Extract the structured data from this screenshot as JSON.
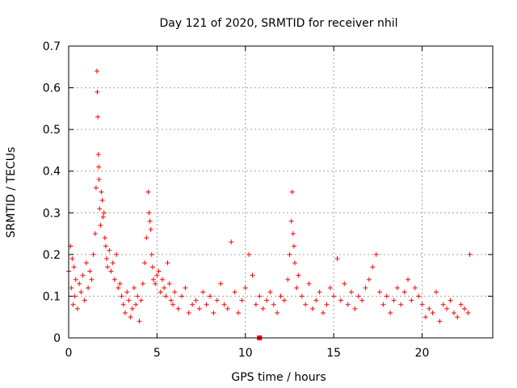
{
  "chart_data": {
    "type": "scatter",
    "title": "Day 121 of 2020, SRMTID for receiver nhil",
    "xlabel": "GPS time / hours",
    "ylabel": "SRMTID / TECUs",
    "xlim": [
      0,
      24
    ],
    "ylim": [
      0,
      0.7
    ],
    "grid": true,
    "marker": "+",
    "color": "#ff0000",
    "xticks": [
      0,
      5,
      10,
      15,
      20
    ],
    "yticks": [
      0,
      0.1,
      0.2,
      0.3,
      0.4,
      0.5,
      0.6,
      0.7
    ],
    "xtick_labels": [
      "0",
      "5",
      "10",
      "15",
      "20"
    ],
    "ytick_labels": [
      "0",
      "0.1",
      "0.2",
      "0.3",
      "0.4",
      "0.5",
      "0.6",
      "0.7"
    ],
    "series": [
      {
        "name": "SRMTID",
        "x": [
          0.0,
          0.1,
          0.15,
          0.2,
          0.25,
          0.3,
          0.35,
          0.4,
          0.5,
          0.6,
          0.7,
          0.8,
          0.9,
          1.0,
          1.1,
          1.2,
          1.3,
          1.4,
          1.5,
          1.55,
          1.6,
          1.62,
          1.65,
          1.68,
          1.7,
          1.72,
          1.75,
          1.8,
          1.85,
          1.9,
          1.95,
          2.0,
          2.05,
          2.1,
          2.15,
          2.2,
          2.3,
          2.4,
          2.5,
          2.6,
          2.7,
          2.8,
          2.9,
          3.0,
          3.1,
          3.2,
          3.3,
          3.4,
          3.5,
          3.6,
          3.7,
          3.8,
          3.9,
          4.0,
          4.1,
          4.2,
          4.3,
          4.4,
          4.5,
          4.55,
          4.6,
          4.65,
          4.7,
          4.75,
          4.8,
          4.9,
          5.0,
          5.1,
          5.2,
          5.3,
          5.4,
          5.5,
          5.6,
          5.7,
          5.8,
          5.9,
          6.0,
          6.2,
          6.4,
          6.6,
          6.8,
          7.0,
          7.2,
          7.4,
          7.6,
          7.8,
          8.0,
          8.2,
          8.4,
          8.6,
          8.8,
          9.0,
          9.2,
          9.4,
          9.6,
          9.8,
          10.0,
          10.2,
          10.4,
          10.6,
          10.8,
          11.0,
          11.2,
          11.4,
          11.6,
          11.8,
          12.0,
          12.2,
          12.4,
          12.5,
          12.6,
          12.65,
          12.7,
          12.75,
          12.8,
          12.9,
          13.0,
          13.2,
          13.4,
          13.6,
          13.8,
          14.0,
          14.2,
          14.4,
          14.6,
          14.8,
          15.0,
          15.2,
          15.4,
          15.6,
          15.8,
          16.0,
          16.2,
          16.4,
          16.6,
          16.8,
          17.0,
          17.2,
          17.4,
          17.6,
          17.8,
          18.0,
          18.2,
          18.4,
          18.6,
          18.8,
          19.0,
          19.2,
          19.4,
          19.6,
          19.8,
          20.0,
          20.2,
          20.4,
          20.6,
          20.8,
          21.0,
          21.2,
          21.4,
          21.6,
          21.8,
          22.0,
          22.2,
          22.4,
          22.6,
          22.7
        ],
        "y": [
          0.16,
          0.22,
          0.12,
          0.19,
          0.08,
          0.17,
          0.1,
          0.14,
          0.07,
          0.13,
          0.11,
          0.15,
          0.09,
          0.18,
          0.12,
          0.16,
          0.14,
          0.2,
          0.25,
          0.36,
          0.64,
          0.59,
          0.53,
          0.44,
          0.41,
          0.38,
          0.31,
          0.27,
          0.35,
          0.33,
          0.29,
          0.3,
          0.24,
          0.22,
          0.19,
          0.17,
          0.21,
          0.16,
          0.18,
          0.14,
          0.2,
          0.12,
          0.13,
          0.1,
          0.08,
          0.06,
          0.11,
          0.09,
          0.05,
          0.07,
          0.12,
          0.08,
          0.1,
          0.04,
          0.09,
          0.13,
          0.18,
          0.24,
          0.35,
          0.3,
          0.28,
          0.26,
          0.2,
          0.17,
          0.14,
          0.13,
          0.15,
          0.16,
          0.11,
          0.14,
          0.12,
          0.1,
          0.18,
          0.13,
          0.09,
          0.08,
          0.11,
          0.07,
          0.1,
          0.12,
          0.06,
          0.08,
          0.09,
          0.07,
          0.11,
          0.08,
          0.1,
          0.06,
          0.09,
          0.13,
          0.08,
          0.07,
          0.23,
          0.11,
          0.06,
          0.09,
          0.12,
          0.2,
          0.15,
          0.08,
          0.1,
          0.07,
          0.09,
          0.11,
          0.08,
          0.06,
          0.1,
          0.09,
          0.14,
          0.2,
          0.28,
          0.35,
          0.25,
          0.22,
          0.18,
          0.12,
          0.15,
          0.1,
          0.08,
          0.13,
          0.07,
          0.09,
          0.11,
          0.06,
          0.08,
          0.12,
          0.1,
          0.19,
          0.09,
          0.13,
          0.08,
          0.11,
          0.07,
          0.1,
          0.09,
          0.12,
          0.14,
          0.17,
          0.2,
          0.11,
          0.08,
          0.1,
          0.06,
          0.09,
          0.12,
          0.08,
          0.11,
          0.14,
          0.09,
          0.12,
          0.1,
          0.08,
          0.05,
          0.07,
          0.06,
          0.11,
          0.04,
          0.08,
          0.07,
          0.09,
          0.06,
          0.05,
          0.08,
          0.07,
          0.06,
          0.2
        ]
      }
    ],
    "outliers": [
      {
        "x": 10.8,
        "y": 0.0
      }
    ]
  }
}
